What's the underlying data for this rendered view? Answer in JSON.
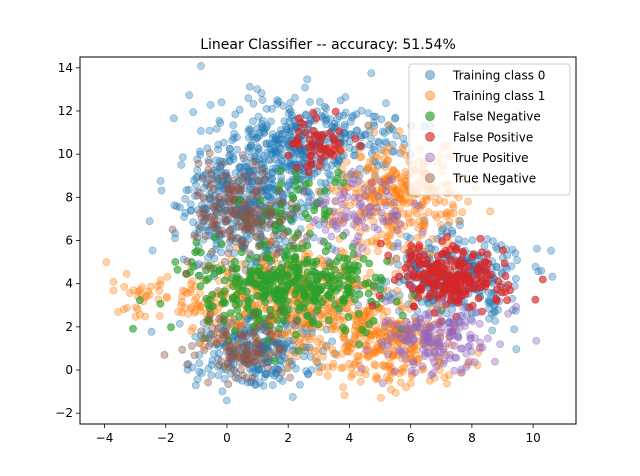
{
  "chart_data": {
    "type": "scatter",
    "title": "Linear Classifier -- accuracy: 51.54%",
    "xlabel": "",
    "ylabel": "",
    "xlim": [
      -4.8,
      11.4
    ],
    "ylim": [
      -2.5,
      14.5
    ],
    "xticks": [
      -4,
      -2,
      0,
      2,
      4,
      6,
      8,
      10
    ],
    "yticks": [
      -2,
      0,
      2,
      4,
      6,
      8,
      10,
      12,
      14
    ],
    "grid": false,
    "legend_position": "top-right",
    "series": [
      {
        "name": "Training class 0",
        "color": "#1f77b4",
        "alpha": 0.35,
        "clusters": [
          {
            "center": [
              0.5,
              7.5
            ],
            "spread": [
              1.0,
              1.4
            ],
            "count": 420
          },
          {
            "center": [
              2.2,
              10.2
            ],
            "spread": [
              1.3,
              1.2
            ],
            "count": 300
          },
          {
            "center": [
              1.0,
              1.0
            ],
            "spread": [
              1.0,
              0.9
            ],
            "count": 300
          },
          {
            "center": [
              7.3,
              4.3
            ],
            "spread": [
              1.1,
              1.0
            ],
            "count": 330
          },
          {
            "center": [
              3.8,
              11.0
            ],
            "spread": [
              1.3,
              0.8
            ],
            "count": 120
          }
        ]
      },
      {
        "name": "Training class 1",
        "color": "#ff7f0e",
        "alpha": 0.35,
        "clusters": [
          {
            "center": [
              2.3,
              3.3
            ],
            "spread": [
              1.6,
              1.3
            ],
            "count": 420
          },
          {
            "center": [
              5.5,
              8.2
            ],
            "spread": [
              1.0,
              1.3
            ],
            "count": 330
          },
          {
            "center": [
              5.3,
              1.2
            ],
            "spread": [
              1.2,
              0.9
            ],
            "count": 280
          },
          {
            "center": [
              -1.5,
              3.4
            ],
            "spread": [
              1.0,
              0.6
            ],
            "count": 80
          }
        ]
      },
      {
        "name": "False Negative",
        "color": "#2ca02c",
        "alpha": 0.65,
        "clusters": [
          {
            "center": [
              2.0,
              3.8
            ],
            "spread": [
              1.6,
              1.0
            ],
            "count": 380
          },
          {
            "center": [
              2.3,
              7.5
            ],
            "spread": [
              0.9,
              0.9
            ],
            "count": 60
          }
        ]
      },
      {
        "name": "False Positive",
        "color": "#d62728",
        "alpha": 0.65,
        "clusters": [
          {
            "center": [
              7.3,
              4.4
            ],
            "spread": [
              0.9,
              0.8
            ],
            "count": 230
          },
          {
            "center": [
              3.0,
              10.6
            ],
            "spread": [
              0.5,
              0.6
            ],
            "count": 55
          }
        ]
      },
      {
        "name": "True Positive",
        "color": "#9467bd",
        "alpha": 0.4,
        "clusters": [
          {
            "center": [
              6.8,
              1.3
            ],
            "spread": [
              0.9,
              0.8
            ],
            "count": 170
          },
          {
            "center": [
              4.3,
              7.3
            ],
            "spread": [
              0.9,
              0.8
            ],
            "count": 90
          }
        ]
      },
      {
        "name": "True Negative",
        "color": "#8c564b",
        "alpha": 0.4,
        "clusters": [
          {
            "center": [
              0.4,
              7.3
            ],
            "spread": [
              0.8,
              1.1
            ],
            "count": 190
          },
          {
            "center": [
              0.5,
              1.1
            ],
            "spread": [
              0.8,
              0.7
            ],
            "count": 110
          }
        ]
      }
    ]
  }
}
